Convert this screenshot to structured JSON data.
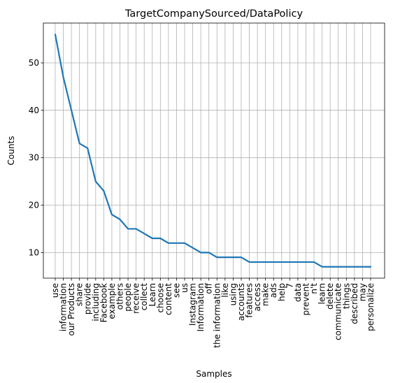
{
  "chart_data": {
    "type": "line",
    "title": "TargetCompanySourced/DataPolicy",
    "xlabel": "Samples",
    "ylabel": "Counts",
    "grid": true,
    "line_color": "#1f77b4",
    "ylim": [
      4.6,
      58.4
    ],
    "yticks": [
      10,
      20,
      30,
      40,
      50
    ],
    "categories": [
      "use",
      "information",
      "our Products",
      "share",
      "provide",
      "including",
      "Facebook",
      "example",
      "others",
      "people",
      "receive",
      "collect",
      "Learn",
      "choose",
      "content",
      "see",
      "us",
      "Instagram",
      "Information",
      "off",
      "the information",
      "like",
      "using",
      "accounts",
      "features",
      "access",
      "make",
      "ads",
      "help",
      "7",
      "data",
      "prevent",
      "n't",
      "learn",
      "delete",
      "communicate",
      "things",
      "described",
      "may",
      "personalize"
    ],
    "values": [
      56,
      47,
      40,
      33,
      32,
      25,
      23,
      18,
      17,
      15,
      15,
      14,
      13,
      13,
      12,
      12,
      12,
      11,
      10,
      10,
      9,
      9,
      9,
      9,
      8,
      8,
      8,
      8,
      8,
      8,
      8,
      8,
      8,
      7,
      7,
      7,
      7,
      7,
      7,
      7
    ]
  }
}
